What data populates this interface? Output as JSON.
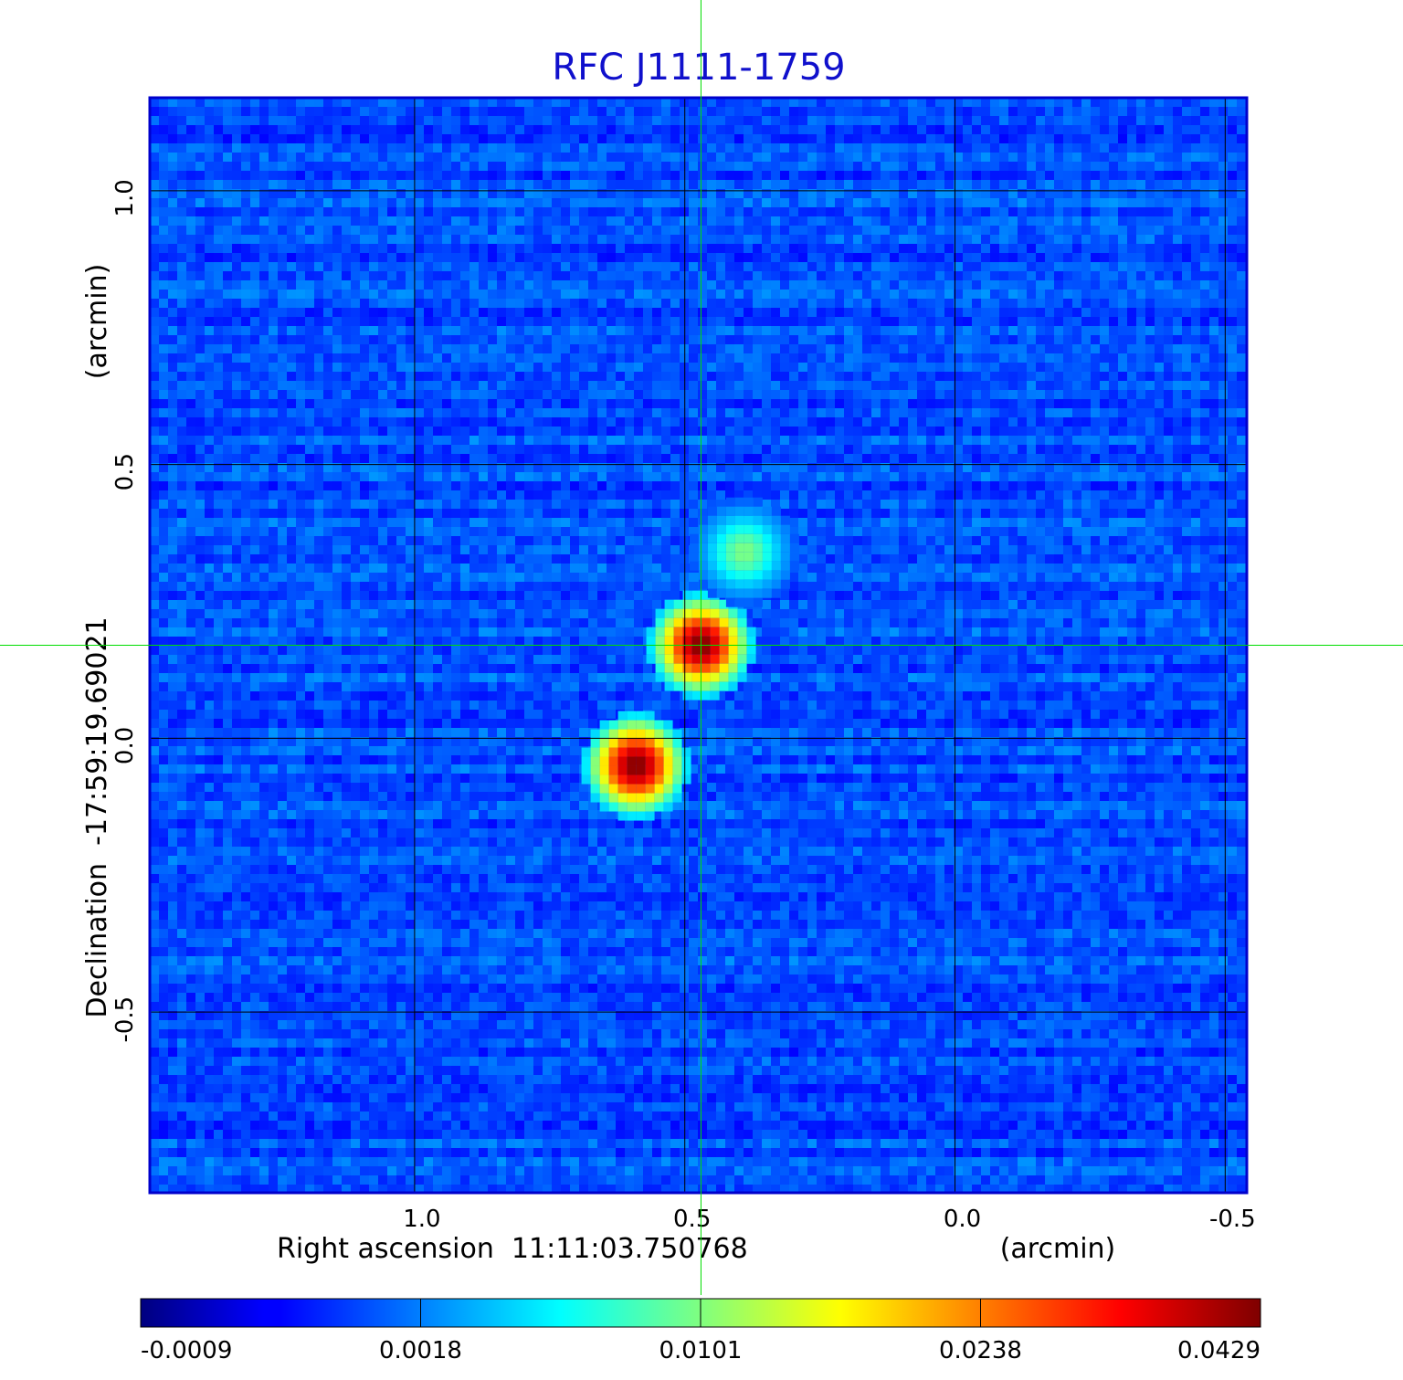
{
  "chart_data": {
    "type": "heatmap",
    "title": "RFC J1111-1759",
    "xlabel": "Right ascension  11:11:03.750768",
    "xunit": "(arcmin)",
    "ylabel": "Declination  -17:59:19.69021",
    "yunit": "(arcmin)",
    "x_axis_reversed": true,
    "xlim": [
      1.49,
      -0.54
    ],
    "ylim": [
      -0.83,
      1.17
    ],
    "x_ticks": [
      {
        "value": 1.0,
        "label": "1.0"
      },
      {
        "value": 0.5,
        "label": "0.5"
      },
      {
        "value": 0.0,
        "label": "0.0"
      },
      {
        "value": -0.5,
        "label": "-0.5"
      }
    ],
    "y_ticks": [
      {
        "value": 1.0,
        "label": "1.0"
      },
      {
        "value": 0.5,
        "label": "0.5"
      },
      {
        "value": 0.0,
        "label": "0.0"
      },
      {
        "value": -0.5,
        "label": "-0.5"
      }
    ],
    "grid": true,
    "crosshair": {
      "x": 0.47,
      "y": 0.17,
      "color": "#00dd00"
    },
    "colormap": "jet",
    "colorbar": {
      "position": "bottom",
      "ticks": [
        "-0.0009",
        "0.0018",
        "0.0101",
        "0.0238",
        "0.0429"
      ],
      "min": -0.0009,
      "max": 0.0429
    },
    "background_level": 0.0004,
    "sources": [
      {
        "x": 0.47,
        "y": 0.17,
        "peak": 0.0429
      },
      {
        "x": 0.59,
        "y": -0.05,
        "peak": 0.0429
      },
      {
        "x": 0.39,
        "y": 0.34,
        "peak": 0.0101
      }
    ],
    "title_color": "#1010cc",
    "frame_color": "#0000cc"
  }
}
